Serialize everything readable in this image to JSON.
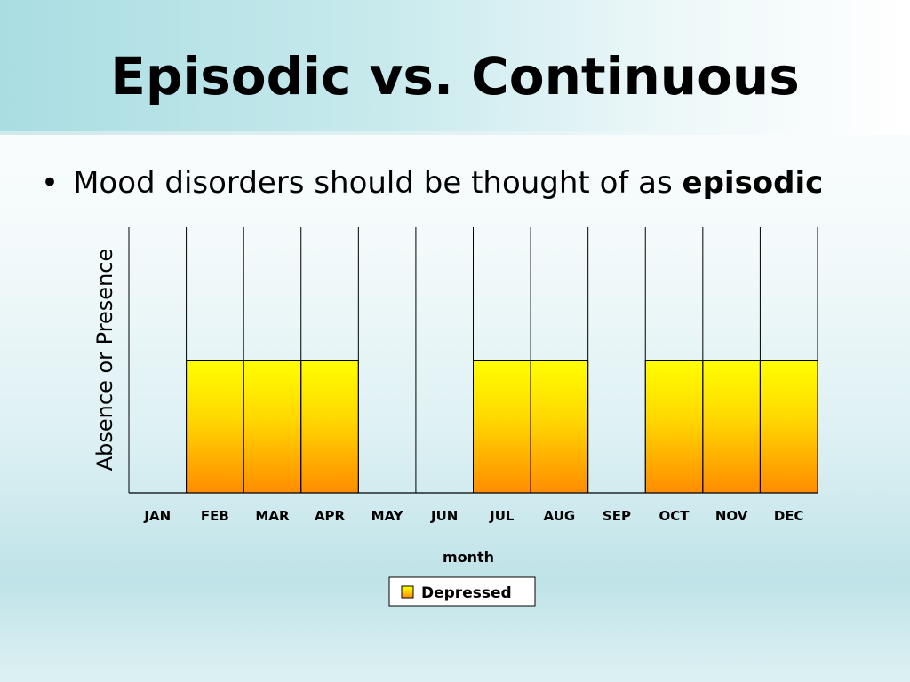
{
  "slide": {
    "title": "Episodic vs. Continuous",
    "bullet": {
      "text": "Mood disorders should be thought of as ",
      "emphasis": "episodic"
    }
  },
  "chart_data": {
    "type": "bar",
    "categories": [
      "JAN",
      "FEB",
      "MAR",
      "APR",
      "MAY",
      "JUN",
      "JUL",
      "AUG",
      "SEP",
      "OCT",
      "NOV",
      "DEC"
    ],
    "series": [
      {
        "name": "Depressed",
        "values": [
          0,
          1,
          1,
          1,
          0,
          0,
          1,
          1,
          0,
          1,
          1,
          1
        ]
      }
    ],
    "xlabel": "month",
    "ylabel": "Absence or Presence",
    "ylim": [
      0,
      2
    ],
    "grid": "vertical",
    "legend": "bottom",
    "colors": {
      "bar_top": "#ffff00",
      "bar_bottom": "#ff8c00"
    }
  }
}
